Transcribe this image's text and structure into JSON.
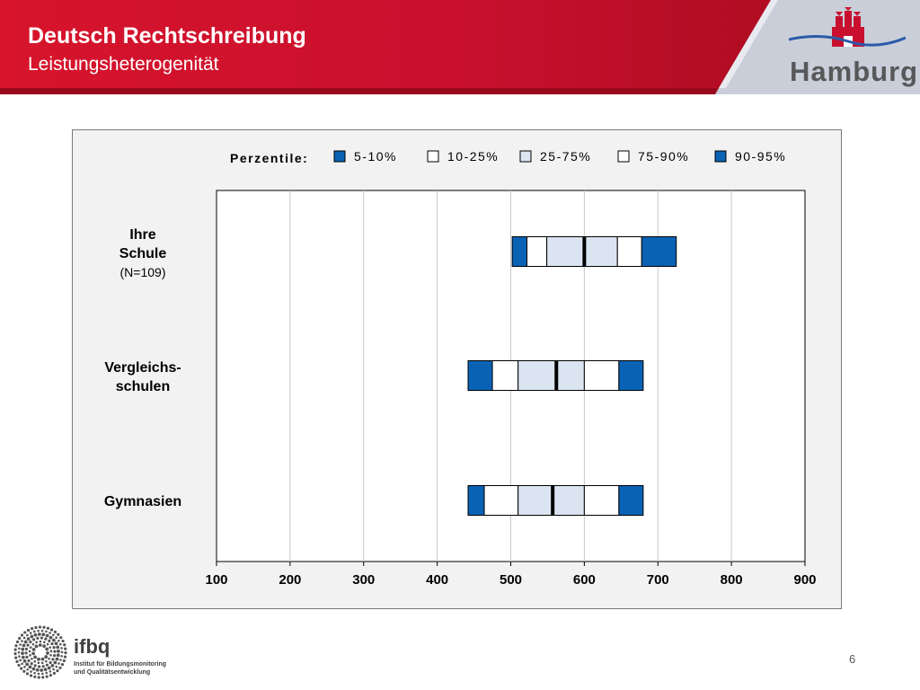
{
  "header": {
    "title": "Deutsch Rechtschreibung",
    "subtitle": "Leistungsheterogenität",
    "logo_text": "Hamburg",
    "primary_color": "#c8102e"
  },
  "footer": {
    "logo_text": "ifbq",
    "logo_subtext_line1": "Institut für Bildungsmonitoring",
    "logo_subtext_line2": "und Qualitätsentwicklung",
    "page_number": "6"
  },
  "chart_data": {
    "type": "table",
    "chart_kind": "percentile-band",
    "legend_title": "Perzentile:",
    "legend": [
      {
        "label": "5-10%",
        "color": "#0a62b5"
      },
      {
        "label": "10-25%",
        "color": "#ffffff"
      },
      {
        "label": "25-75%",
        "color": "#dbe5f1"
      },
      {
        "label": "75-90%",
        "color": "#ffffff"
      },
      {
        "label": "90-95%",
        "color": "#0a62b5"
      }
    ],
    "legend_placement": "top",
    "xlim": [
      100,
      900
    ],
    "xticks": [
      "100",
      "200",
      "300",
      "400",
      "500",
      "600",
      "700",
      "800",
      "900"
    ],
    "grid": true,
    "categories": [
      {
        "line1": "Ihre",
        "line2": "Schule",
        "note": "(N=109)"
      },
      {
        "line1": "Vergleichs-",
        "line2": "schulen",
        "note": ""
      },
      {
        "line1": "Gymnasien",
        "line2": "",
        "note": ""
      }
    ],
    "series": [
      {
        "p5": 502,
        "p10": 522,
        "p25": 549,
        "median": 600,
        "p75": 645,
        "p90": 678,
        "p95": 725
      },
      {
        "p5": 442,
        "p10": 475,
        "p25": 510,
        "median": 562,
        "p75": 600,
        "p90": 647,
        "p95": 680
      },
      {
        "p5": 442,
        "p10": 464,
        "p25": 510,
        "median": 557,
        "p75": 600,
        "p90": 647,
        "p95": 680
      }
    ]
  }
}
